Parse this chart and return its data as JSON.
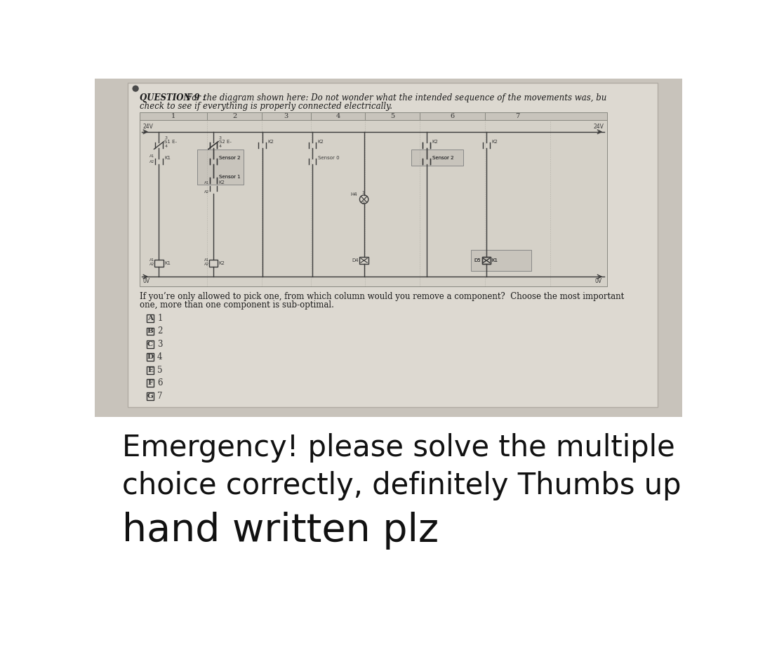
{
  "bg_color": "#c8c3bb",
  "photo_bg": "#d4cfc6",
  "paper_bg": "#e2ddd5",
  "white_bg": "#ffffff",
  "title_bold": "QUESTION 9 : ",
  "title_rest": " For the diagram shown here: Do not wonder what the intended sequence of the movements was, bu",
  "title_line2": "check to see if everything is properly connected electrically.",
  "question_line1": "If you’re only allowed to pick one, from which column would you remove a component?  Choose the most important",
  "question_line2": "one, more than one component is sub-optimal.",
  "choices": [
    "A",
    "B",
    "C",
    "D",
    "E",
    "F",
    "G"
  ],
  "choice_nums": [
    "1",
    "2",
    "3",
    "4",
    "5",
    "6",
    "7"
  ],
  "emerg1": "Emergency! please solve the multiple",
  "emerg2": "choice correctly, definitely Thumbs up",
  "emerg3": "hand written plz",
  "col_labels": [
    "1",
    "2",
    "3",
    "4",
    "5",
    "6",
    "7"
  ],
  "lc": "#3a3a3a",
  "lw": 1.0
}
